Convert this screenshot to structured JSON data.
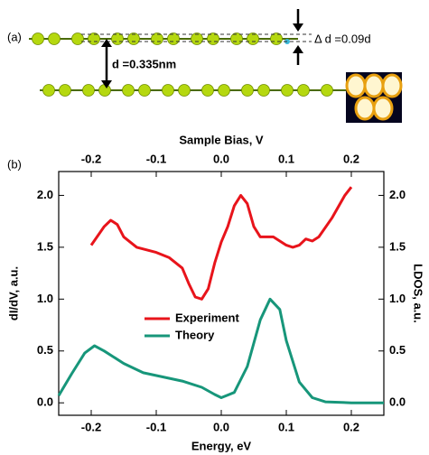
{
  "figure": {
    "panel_a_label": "(a)",
    "panel_b_label": "(b)",
    "interlayer_label": "d =0.335nm",
    "offset_label": "Δ d =0.09d"
  },
  "chart_data": {
    "type": "line",
    "xlabel": "Energy, eV",
    "x2label": "Sample Bias, V",
    "ylabel": "dI/dV, a.u.",
    "y2label": "LDOS, a.u.",
    "xlim": [
      -0.25,
      0.25
    ],
    "xticks": [
      {
        "value": -0.2,
        "label": "-0.2"
      },
      {
        "value": -0.1,
        "label": "-0.1"
      },
      {
        "value": 0,
        "label": "0.0"
      },
      0.1,
      0.2
    ],
    "x2lim": [
      -0.25,
      0.25
    ],
    "x2ticks": [
      {
        "value": -0.2,
        "label": "-0.2"
      },
      {
        "value": -0.1,
        "label": "-0.1"
      },
      {
        "value": 0,
        "label": "0.0"
      },
      0.1,
      0.2
    ],
    "ylim": [
      -0.12,
      2.23
    ],
    "yticks": [
      {
        "value": 0,
        "label": "0.0"
      },
      0.5,
      {
        "value": 1,
        "label": "1.0"
      },
      1.5,
      {
        "value": 2,
        "label": "2.0"
      }
    ],
    "y2lim": [
      -0.12,
      2.23
    ],
    "y2ticks": [
      {
        "value": 0,
        "label": "0.0"
      },
      0.5,
      {
        "value": 1,
        "label": "1.0"
      },
      1.5,
      {
        "value": 2,
        "label": "2.0"
      }
    ],
    "legend": "center-left",
    "series": [
      {
        "name": "Experiment",
        "color": "#e8141b",
        "x": [
          -0.2,
          -0.18,
          -0.17,
          -0.16,
          -0.15,
          -0.13,
          -0.1,
          -0.08,
          -0.06,
          -0.05,
          -0.04,
          -0.03,
          -0.02,
          -0.01,
          0,
          0.01,
          0.02,
          0.03,
          0.04,
          0.05,
          0.06,
          0.08,
          0.1,
          0.11,
          0.12,
          0.13,
          0.14,
          0.15,
          0.17,
          0.19,
          0.2
        ],
        "values": [
          1.52,
          1.7,
          1.76,
          1.72,
          1.6,
          1.5,
          1.45,
          1.4,
          1.3,
          1.15,
          1.02,
          1.0,
          1.1,
          1.35,
          1.55,
          1.7,
          1.9,
          2.0,
          1.92,
          1.7,
          1.6,
          1.6,
          1.52,
          1.5,
          1.52,
          1.58,
          1.56,
          1.6,
          1.78,
          2.0,
          2.08
        ]
      },
      {
        "name": "Theory",
        "color": "#17967a",
        "x": [
          -0.25,
          -0.23,
          -0.21,
          -0.195,
          -0.18,
          -0.15,
          -0.12,
          -0.09,
          -0.06,
          -0.03,
          -0.01,
          0,
          0.02,
          0.04,
          0.06,
          0.075,
          0.09,
          0.1,
          0.12,
          0.14,
          0.16,
          0.2,
          0.25
        ],
        "values": [
          0.07,
          0.28,
          0.48,
          0.55,
          0.5,
          0.38,
          0.29,
          0.25,
          0.21,
          0.15,
          0.08,
          0.05,
          0.1,
          0.35,
          0.8,
          1.0,
          0.9,
          0.6,
          0.2,
          0.05,
          0.01,
          0.0,
          0.0
        ]
      }
    ]
  }
}
